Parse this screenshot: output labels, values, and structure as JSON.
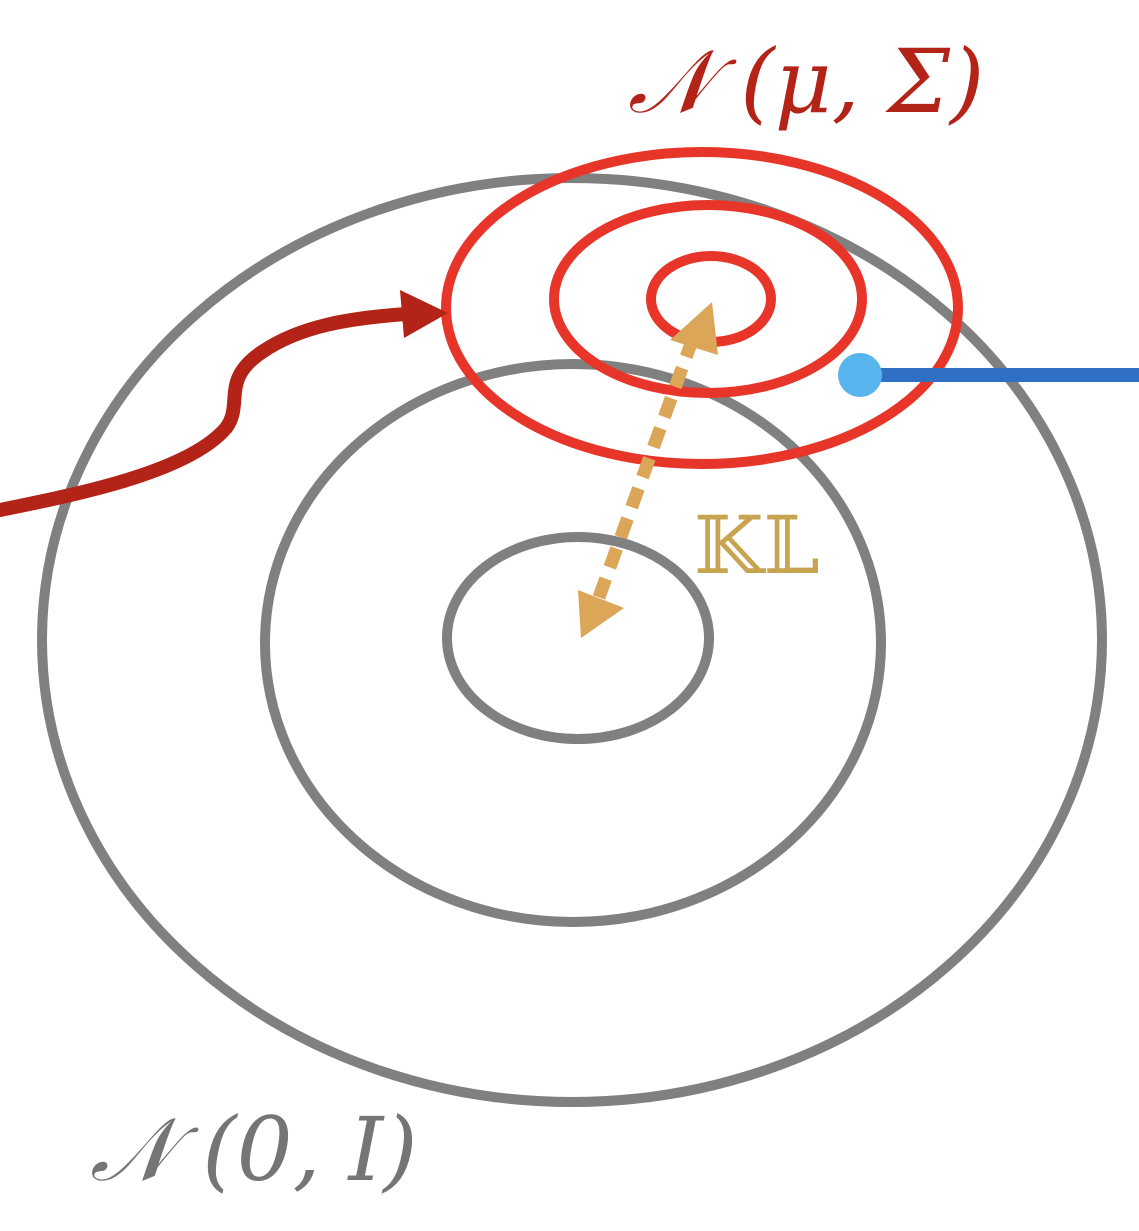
{
  "labels": {
    "posterior": "𝒩 (μ, Σ)",
    "prior": "𝒩 (0, I)",
    "kl": "𝕂𝕃"
  },
  "colors": {
    "prior_contours": "#808080",
    "posterior_contours": "#e8352a",
    "input_arrow": "#b32318",
    "kl_arrow": "#dca658",
    "kl_label": "#c9a450",
    "sample_dot": "#58b4ec",
    "sample_line": "#2f6fc4",
    "posterior_label": "#b32318",
    "prior_label": "#757575"
  }
}
